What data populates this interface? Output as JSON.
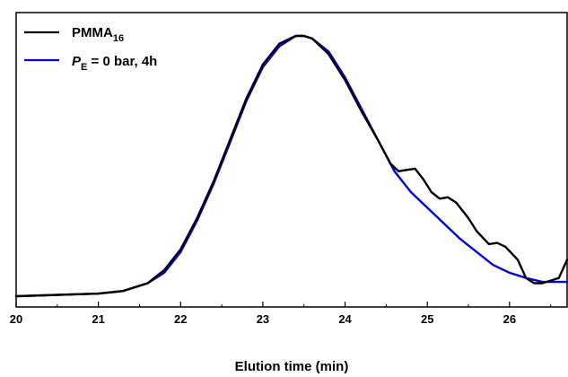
{
  "chart_data": {
    "type": "line",
    "xlabel": "Elution time (min)",
    "ylabel": "",
    "xlim": [
      20,
      26.7
    ],
    "ylim": [
      -0.05,
      1.05
    ],
    "x_ticks": [
      "20",
      "21",
      "22",
      "23",
      "24",
      "25",
      "26"
    ],
    "y_axis_labels_shown": false,
    "grid": false,
    "legend": {
      "position": "top-left",
      "entries": [
        {
          "prefix": "PMMA",
          "subscript": "16",
          "suffix": "",
          "color": "#000000"
        },
        {
          "prefix": "P",
          "subscript": "E",
          "suffix": " = 0 bar, 4h",
          "color": "#0000ee",
          "prefix_italic": true
        }
      ]
    },
    "series": [
      {
        "name": "PMMA16",
        "color": "#000000",
        "points": [
          [
            20.0,
            0.0
          ],
          [
            21.0,
            0.01
          ],
          [
            21.3,
            0.02
          ],
          [
            21.6,
            0.05
          ],
          [
            21.8,
            0.1
          ],
          [
            22.0,
            0.18
          ],
          [
            22.2,
            0.3
          ],
          [
            22.4,
            0.44
          ],
          [
            22.6,
            0.6
          ],
          [
            22.8,
            0.76
          ],
          [
            23.0,
            0.89
          ],
          [
            23.2,
            0.97
          ],
          [
            23.4,
            1.0
          ],
          [
            23.5,
            1.0
          ],
          [
            23.6,
            0.99
          ],
          [
            23.8,
            0.93
          ],
          [
            24.0,
            0.83
          ],
          [
            24.2,
            0.71
          ],
          [
            24.4,
            0.6
          ],
          [
            24.55,
            0.51
          ],
          [
            24.65,
            0.48
          ],
          [
            24.75,
            0.485
          ],
          [
            24.85,
            0.49
          ],
          [
            24.95,
            0.45
          ],
          [
            25.05,
            0.4
          ],
          [
            25.15,
            0.375
          ],
          [
            25.25,
            0.38
          ],
          [
            25.35,
            0.36
          ],
          [
            25.5,
            0.3
          ],
          [
            25.6,
            0.25
          ],
          [
            25.75,
            0.2
          ],
          [
            25.85,
            0.205
          ],
          [
            25.95,
            0.19
          ],
          [
            26.1,
            0.14
          ],
          [
            26.2,
            0.07
          ],
          [
            26.3,
            0.05
          ],
          [
            26.4,
            0.05
          ],
          [
            26.5,
            0.06
          ],
          [
            26.6,
            0.07
          ],
          [
            26.7,
            0.14
          ]
        ]
      },
      {
        "name": "PE = 0 bar, 4h",
        "color": "#0000ee",
        "points": [
          [
            20.0,
            0.0
          ],
          [
            21.0,
            0.01
          ],
          [
            21.3,
            0.02
          ],
          [
            21.6,
            0.05
          ],
          [
            21.8,
            0.09
          ],
          [
            22.0,
            0.17
          ],
          [
            22.2,
            0.29
          ],
          [
            22.4,
            0.43
          ],
          [
            22.6,
            0.59
          ],
          [
            22.8,
            0.75
          ],
          [
            23.0,
            0.88
          ],
          [
            23.2,
            0.96
          ],
          [
            23.4,
            1.0
          ],
          [
            23.5,
            1.0
          ],
          [
            23.6,
            0.99
          ],
          [
            23.8,
            0.94
          ],
          [
            24.0,
            0.84
          ],
          [
            24.2,
            0.72
          ],
          [
            24.4,
            0.6
          ],
          [
            24.6,
            0.48
          ],
          [
            24.8,
            0.4
          ],
          [
            25.0,
            0.34
          ],
          [
            25.2,
            0.28
          ],
          [
            25.4,
            0.22
          ],
          [
            25.6,
            0.17
          ],
          [
            25.8,
            0.12
          ],
          [
            26.0,
            0.09
          ],
          [
            26.2,
            0.07
          ],
          [
            26.4,
            0.055
          ],
          [
            26.7,
            0.055
          ]
        ]
      }
    ]
  }
}
